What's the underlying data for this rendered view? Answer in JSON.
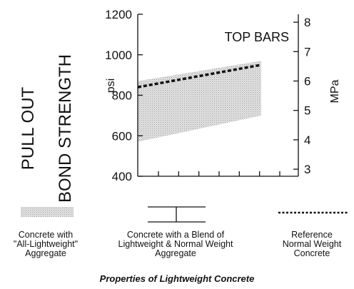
{
  "chart_data": {
    "type": "area",
    "title": "TOP BARS",
    "ylabel": "PULL OUT BOND STRENGTH",
    "ylabel_unit_left": "psi",
    "ylabel_unit_right": "MPa",
    "xlabel": "",
    "ylim": [
      400,
      1200
    ],
    "yticks": [
      "400",
      "600",
      "800",
      "1000",
      "1200"
    ],
    "y2lim": [
      2.76,
      8.27
    ],
    "y2ticks": [
      "3",
      "4",
      "5",
      "6",
      "7",
      "8"
    ],
    "x_tick_count": 7,
    "grid": false,
    "legend_position": "bottom",
    "series": [
      {
        "name": "Concrete with \"All-Lightweight\" Aggregate",
        "style": "shaded-band",
        "x": [
          0,
          1
        ],
        "lower": [
          570,
          700
        ],
        "upper": [
          870,
          970
        ]
      },
      {
        "name": "Concrete with a Blend of Lightweight & Normal Weight Aggregate",
        "style": "range-bar",
        "values": []
      },
      {
        "name": "Reference Normal Weight Concrete",
        "style": "dashed-line",
        "x": [
          0,
          1
        ],
        "y": [
          840,
          950
        ]
      }
    ],
    "legend": [
      "Concrete with \"All-Lightweight\" Aggregate",
      "Concrete with a Blend of Lightweight & Normal Weight Aggregate",
      "Reference Normal Weight Concrete"
    ],
    "caption": "Properties of Lightweight Concrete"
  },
  "legend_lines": {
    "lw": [
      "Concrete with",
      "\"All-Lightweight\"",
      "Aggregate"
    ],
    "blend": [
      "Concrete with a Blend of",
      "Lightweight & Normal Weight",
      "Aggregate"
    ],
    "ref": [
      "Reference",
      "Normal Weight",
      "Concrete"
    ]
  },
  "colors": {
    "band": "#d6d6d6",
    "line": "#111111"
  }
}
